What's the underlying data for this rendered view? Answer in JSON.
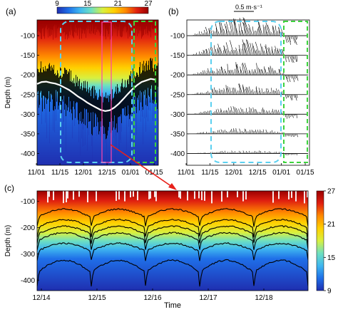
{
  "colors": {
    "colormap": [
      "#1f2fb0",
      "#1f6fe8",
      "#3fb7f0",
      "#6fe0c0",
      "#d8f040",
      "#ffd000",
      "#ff8a00",
      "#e02010",
      "#9a0000"
    ],
    "threshold_line": "#ffffff",
    "current_box": "#5bd0f0",
    "focus_box": "#3dd23d",
    "zoom_box": "#ff44aa",
    "arrow": "#e8201a",
    "isotherm": "#000000"
  },
  "chart_data": [
    {
      "panel_label": "(a)",
      "type": "heatmap",
      "ylabel": "Depth (m)",
      "x_ticks": [
        "11/01",
        "11/15",
        "12/01",
        "12/15",
        "01/01",
        "01/15"
      ],
      "y_ticks": [
        "-100",
        "-150",
        "-200",
        "-250",
        "-300",
        "-350",
        "-400"
      ],
      "ylim": [
        -430,
        -60
      ],
      "colorbar": {
        "ticks": [
          "9",
          "15",
          "21",
          "27"
        ],
        "range": [
          9,
          27
        ]
      },
      "threshold_depth": [
        [
          0,
          -223
        ],
        [
          3,
          -218
        ],
        [
          6,
          -217
        ],
        [
          9,
          -220
        ],
        [
          12,
          -222
        ],
        [
          15,
          -226
        ],
        [
          18,
          -232
        ],
        [
          21,
          -238
        ],
        [
          24,
          -246
        ],
        [
          27,
          -255
        ],
        [
          30,
          -262
        ],
        [
          33,
          -270
        ],
        [
          36,
          -277
        ],
        [
          39,
          -283
        ],
        [
          42,
          -289
        ],
        [
          45,
          -292
        ],
        [
          48,
          -290
        ],
        [
          51,
          -283
        ],
        [
          54,
          -273
        ],
        [
          57,
          -261
        ],
        [
          60,
          -248
        ],
        [
          63,
          -236
        ],
        [
          66,
          -226
        ],
        [
          69,
          -218
        ],
        [
          72,
          -214
        ],
        [
          75,
          -210
        ],
        [
          78,
          -212
        ]
      ],
      "x_range_days": [
        0,
        80
      ]
    },
    {
      "panel_label": "(b)",
      "type": "vector",
      "scale_label": "0.5 m·s⁻¹",
      "x_ticks": [
        "11/01",
        "11/15",
        "12/01",
        "12/15",
        "01/01",
        "01/15"
      ],
      "y_ticks": [
        "-100",
        "-150",
        "-200",
        "-250",
        "-300",
        "-350",
        "-400"
      ],
      "ylim": [
        -430,
        -60
      ],
      "levels": [
        -100,
        -150,
        -200,
        -250,
        -300,
        -350,
        -400
      ]
    },
    {
      "panel_label": "(c)",
      "type": "heatmap",
      "xlabel": "Time",
      "ylabel": "Depth (m)",
      "x_ticks": [
        "12/14",
        "12/15",
        "12/16",
        "12/17",
        "12/18"
      ],
      "y_ticks": [
        "-100",
        "-200",
        "-300",
        "-400"
      ],
      "ylim": [
        -440,
        -60
      ],
      "colorbar": {
        "ticks": [
          "27",
          "21",
          "15",
          "9"
        ],
        "range": [
          9,
          27
        ]
      },
      "isotherm_depths": [
        -160,
        -200,
        -225,
        -250,
        -290,
        -370
      ]
    }
  ]
}
